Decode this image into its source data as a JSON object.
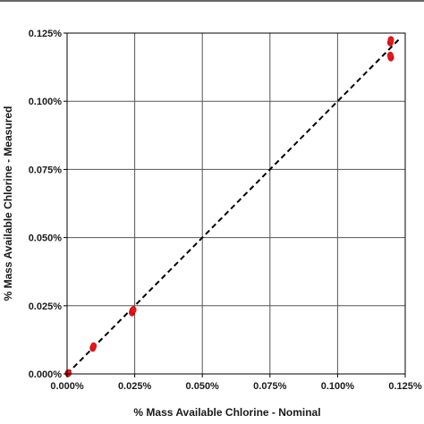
{
  "chart_data": {
    "type": "scatter",
    "title": "",
    "xlabel": "% Mass Available Chlorine - Nominal",
    "ylabel": "% Mass Available Chlorine - Measured",
    "xlim": [
      0,
      0.125
    ],
    "ylim": [
      0,
      0.125
    ],
    "x_ticks": [
      0,
      0.025,
      0.05,
      0.075,
      0.1,
      0.125
    ],
    "y_ticks": [
      0,
      0.025,
      0.05,
      0.075,
      0.1,
      0.125
    ],
    "x_tick_labels": [
      "0.000%",
      "0.025%",
      "0.050%",
      "0.075%",
      "0.100%",
      "0.125%"
    ],
    "y_tick_labels": [
      "0.000%",
      "0.025%",
      "0.050%",
      "0.075%",
      "0.100%",
      "0.125%"
    ],
    "grid": true,
    "point_color": "#e8151b",
    "reference_line": {
      "style": "dashed",
      "color": "#000000",
      "from": [
        0,
        0
      ],
      "to": [
        0.1225,
        0.1225
      ]
    },
    "points": [
      {
        "x": 0.0003,
        "y": 0.0002
      },
      {
        "x": 0.0005,
        "y": 0.0003
      },
      {
        "x": 0.0095,
        "y": 0.0095
      },
      {
        "x": 0.0098,
        "y": 0.0102
      },
      {
        "x": 0.024,
        "y": 0.0225
      },
      {
        "x": 0.0242,
        "y": 0.0232
      },
      {
        "x": 0.0245,
        "y": 0.0235
      },
      {
        "x": 0.1195,
        "y": 0.1215
      },
      {
        "x": 0.1197,
        "y": 0.1225
      },
      {
        "x": 0.1197,
        "y": 0.116
      },
      {
        "x": 0.1195,
        "y": 0.1168
      }
    ]
  }
}
